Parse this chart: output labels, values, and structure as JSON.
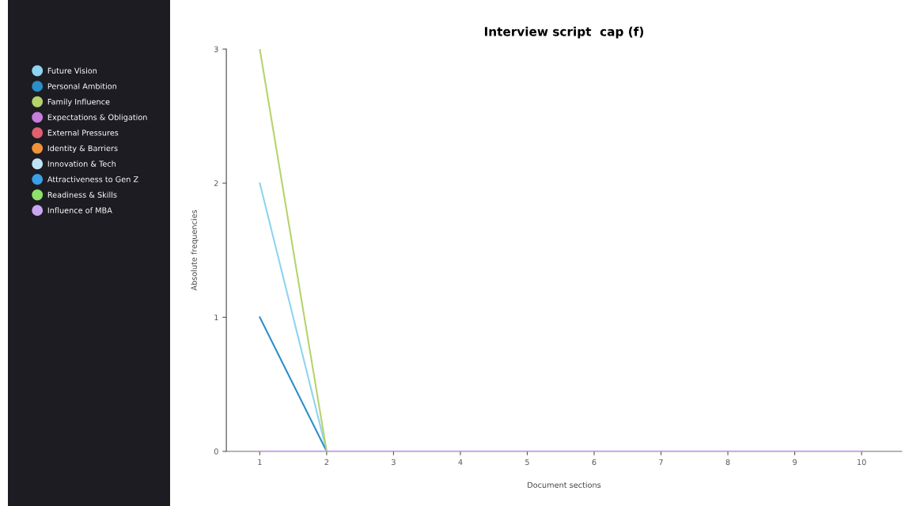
{
  "chart_data": {
    "type": "line",
    "title": "Interview script  cap (f)",
    "xlabel": "Document sections",
    "ylabel": "Absolute frequencies",
    "x": [
      1,
      2,
      3,
      4,
      5,
      6,
      7,
      8,
      9,
      10
    ],
    "series": [
      {
        "name": "Future Vision",
        "color": "#8fd3f0",
        "values": [
          2,
          0,
          null,
          null,
          null,
          null,
          null,
          null,
          null,
          null
        ]
      },
      {
        "name": "Personal Ambition",
        "color": "#2a8fc8",
        "values": [
          1,
          0,
          null,
          null,
          null,
          null,
          null,
          null,
          null,
          null
        ]
      },
      {
        "name": "Family Influence",
        "color": "#b5d36b",
        "values": [
          3,
          0,
          null,
          null,
          null,
          null,
          null,
          null,
          null,
          null
        ]
      },
      {
        "name": "Expectations & Obligation",
        "color": "#c77ddb",
        "values": [
          null,
          null,
          null,
          null,
          null,
          null,
          null,
          null,
          null,
          null
        ]
      },
      {
        "name": "External Pressures",
        "color": "#e06070",
        "values": [
          null,
          null,
          null,
          null,
          null,
          null,
          null,
          null,
          null,
          null
        ]
      },
      {
        "name": "Identity & Barriers",
        "color": "#f0923a",
        "values": [
          null,
          null,
          null,
          null,
          null,
          null,
          null,
          null,
          null,
          null
        ]
      },
      {
        "name": "Innovation & Tech",
        "color": "#c0e4f5",
        "values": [
          null,
          null,
          null,
          null,
          null,
          null,
          null,
          null,
          null,
          null
        ]
      },
      {
        "name": "Attractiveness to Gen Z",
        "color": "#3aa0e8",
        "values": [
          null,
          null,
          null,
          null,
          null,
          null,
          null,
          null,
          null,
          null
        ]
      },
      {
        "name": "Readiness & Skills",
        "color": "#8ee06a",
        "values": [
          null,
          null,
          null,
          null,
          null,
          null,
          null,
          null,
          null,
          null
        ]
      },
      {
        "name": "Influence of MBA",
        "color": "#c9a6ef",
        "values": [
          0,
          0,
          0,
          0,
          0,
          0,
          0,
          0,
          0,
          0
        ]
      }
    ],
    "xlim": [
      0.5,
      10.6
    ],
    "xticks": [
      1,
      2,
      3,
      4,
      5,
      6,
      7,
      8,
      9,
      10
    ],
    "ylim": [
      0,
      3
    ],
    "yticks": [
      0,
      1,
      2,
      3
    ],
    "grid": false,
    "legend": "left",
    "marker": "none",
    "line_style": "solid"
  }
}
